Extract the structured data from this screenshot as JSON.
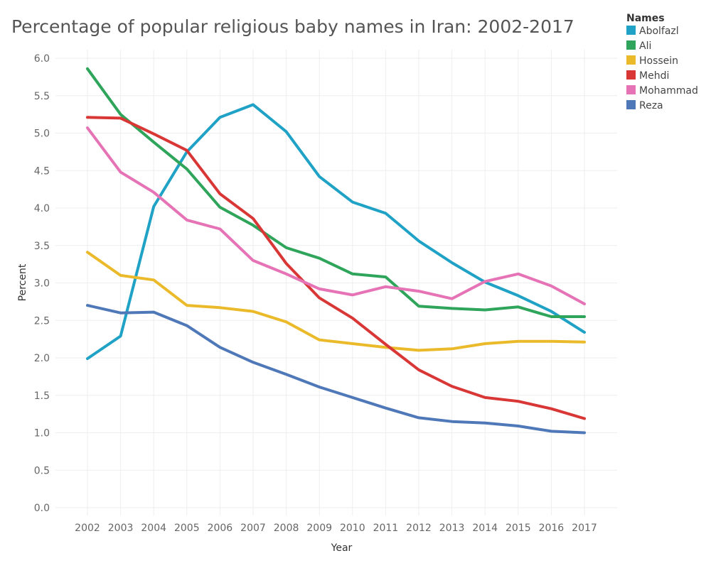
{
  "chart_data": {
    "type": "line",
    "title": "Percentage of popular religious baby names in Iran: 2002-2017",
    "xlabel": "Year",
    "ylabel": "Percent",
    "ylim": [
      0,
      6
    ],
    "grid": true,
    "legend_position": "top-right",
    "legend_title": "Names",
    "categories": [
      "2002",
      "2003",
      "2004",
      "2005",
      "2006",
      "2007",
      "2008",
      "2009",
      "2010",
      "2011",
      "2012",
      "2013",
      "2014",
      "2015",
      "2016",
      "2017"
    ],
    "y_ticks": [
      "0.0",
      "0.5",
      "1.0",
      "1.5",
      "2.0",
      "2.5",
      "3.0",
      "3.5",
      "4.0",
      "4.5",
      "5.0",
      "5.5",
      "6.0"
    ],
    "series": [
      {
        "name": "Abolfazl",
        "color": "#1fa2c5",
        "values": [
          1.99,
          2.29,
          4.02,
          4.75,
          5.21,
          5.38,
          5.02,
          4.42,
          4.08,
          3.93,
          3.56,
          3.27,
          3.01,
          2.83,
          2.62,
          2.34
        ]
      },
      {
        "name": "Ali",
        "color": "#2ea55a",
        "values": [
          5.86,
          5.25,
          4.88,
          4.52,
          4.01,
          3.77,
          3.47,
          3.33,
          3.12,
          3.08,
          2.69,
          2.66,
          2.64,
          2.68,
          2.55,
          2.55
        ]
      },
      {
        "name": "Hossein",
        "color": "#ebba2b",
        "values": [
          3.41,
          3.1,
          3.04,
          2.7,
          2.67,
          2.62,
          2.48,
          2.24,
          2.19,
          2.14,
          2.1,
          2.12,
          2.19,
          2.22,
          2.22,
          2.21
        ]
      },
      {
        "name": "Mehdi",
        "color": "#d93636",
        "values": [
          5.21,
          5.2,
          4.99,
          4.77,
          4.19,
          3.86,
          3.26,
          2.8,
          2.53,
          2.18,
          1.84,
          1.62,
          1.47,
          1.42,
          1.32,
          1.19
        ]
      },
      {
        "name": "Mohammad",
        "color": "#e573b5",
        "values": [
          5.07,
          4.48,
          4.21,
          3.84,
          3.72,
          3.3,
          3.12,
          2.92,
          2.84,
          2.95,
          2.89,
          2.79,
          3.02,
          3.12,
          2.96,
          2.72
        ]
      },
      {
        "name": "Reza",
        "color": "#4f78b8",
        "values": [
          2.7,
          2.6,
          2.61,
          2.43,
          2.14,
          1.94,
          1.78,
          1.61,
          1.47,
          1.33,
          1.2,
          1.15,
          1.13,
          1.09,
          1.02,
          1.0
        ]
      }
    ]
  }
}
